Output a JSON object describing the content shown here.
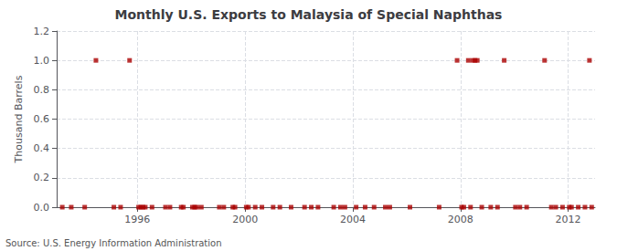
{
  "chart_data": {
    "type": "scatter",
    "title": "Monthly U.S. Exports to Malaysia of Special Naphthas",
    "ylabel": "Thousand Barrels",
    "annotations": [
      "Source: U.S. Energy Information Administration"
    ],
    "x": [
      1993.2083333333,
      1993.5416666667,
      1994.0416666667,
      1994.4583333333,
      1995.125,
      1995.375,
      1995.7083333333,
      1996.0416666667,
      1996.125,
      1996.2083333333,
      1996.2916666667,
      1996.5416666667,
      1997.0416666667,
      1997.2083333333,
      1997.625,
      1997.7083333333,
      1998.0416666667,
      1998.125,
      1998.2083333333,
      1998.375,
      1999.0416666667,
      1999.2083333333,
      1999.5416666667,
      1999.625,
      2000.0416666667,
      2000.125,
      2000.375,
      2000.625,
      2001.0416666667,
      2001.2916666667,
      2001.7083333333,
      2002.2083333333,
      2002.4583333333,
      2002.7083333333,
      2003.2916666667,
      2003.5416666667,
      2003.7083333333,
      2004.125,
      2004.4583333333,
      2004.7916666667,
      2005.2083333333,
      2005.375,
      2006.125,
      2007.2083333333,
      2007.875,
      2008.0416666667,
      2008.125,
      2008.2916666667,
      2008.375,
      2008.4583333333,
      2008.5416666667,
      2008.625,
      2008.7916666667,
      2009.125,
      2009.375,
      2009.625,
      2010.0416666667,
      2010.2083333333,
      2010.4583333333,
      2011.125,
      2011.375,
      2011.5416666667,
      2011.7916666667,
      2012.0416666667,
      2012.125,
      2012.375,
      2012.625,
      2012.7916666667,
      2012.875
    ],
    "values": [
      0,
      0,
      0,
      1,
      0,
      0,
      1,
      0,
      0,
      0,
      0,
      0,
      0,
      0,
      0,
      0,
      0,
      0,
      0,
      0,
      0,
      0,
      0,
      0,
      0,
      0,
      0,
      0,
      0,
      0,
      0,
      0,
      0,
      0,
      0,
      0,
      0,
      0,
      0,
      0,
      0,
      0,
      0,
      0,
      1,
      0,
      0,
      1,
      0,
      1,
      1,
      1,
      0,
      0,
      0,
      1,
      0,
      0,
      0,
      1,
      0,
      0,
      0,
      0,
      0,
      0,
      0,
      1,
      0
    ],
    "color": "#aa0000",
    "marker": "square",
    "xlim": [
      1993,
      2013
    ],
    "xticks": [
      1996,
      2000,
      2004,
      2008,
      2012
    ],
    "ylim": [
      0,
      1.2
    ],
    "yticks": [
      {
        "value": 0.0,
        "label": "0.0"
      },
      {
        "value": 0.2,
        "label": "0.2"
      },
      {
        "value": 0.4,
        "label": "0.4"
      },
      {
        "value": 0.6,
        "label": "0.6"
      },
      {
        "value": 0.8,
        "label": "0.8"
      },
      {
        "value": 1.0,
        "label": "1.0"
      },
      {
        "value": 1.2,
        "label": "1.2"
      }
    ],
    "grid": true
  }
}
